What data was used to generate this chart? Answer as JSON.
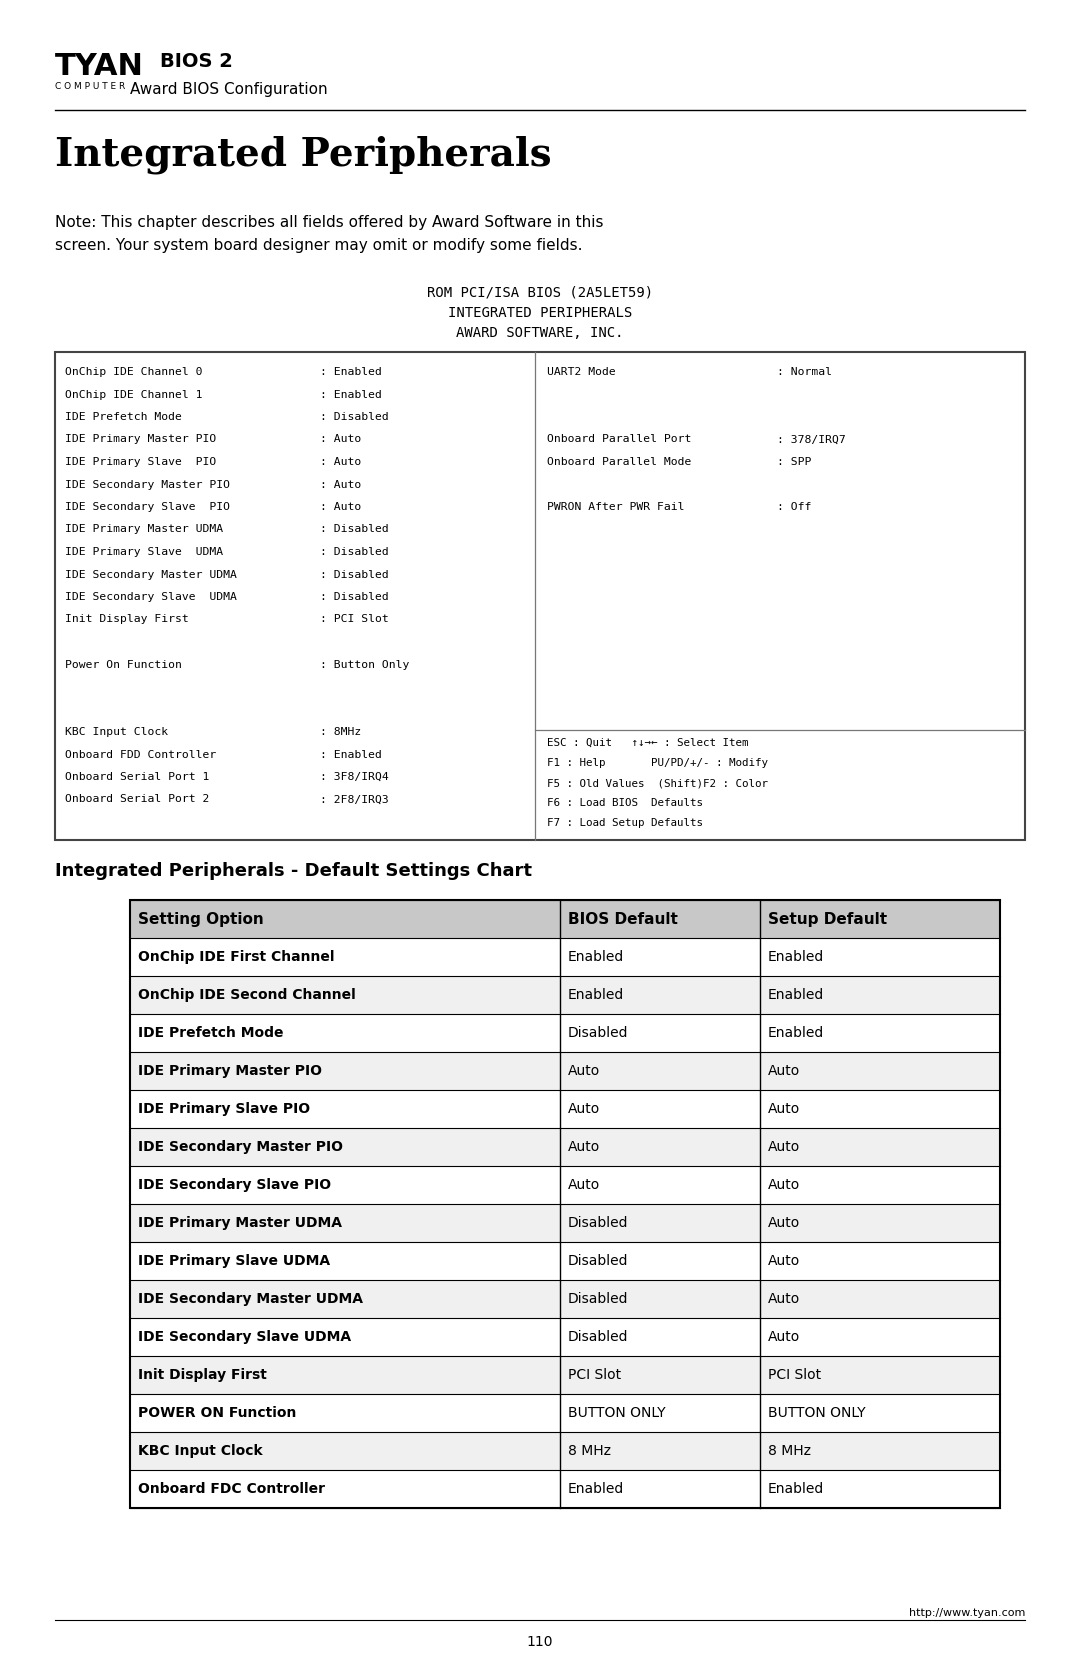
{
  "page_title": "Integrated Peripherals",
  "header_bios": "BIOS 2",
  "header_sub": "Award BIOS Configuration",
  "note_text1": "Note: This chapter describes all fields offered by Award Software in this",
  "note_text2": "screen. Your system board designer may omit or modify some fields.",
  "rom_lines": [
    "ROM PCI/ISA BIOS (2A5LET59)",
    "INTEGRATED PERIPHERALS",
    "AWARD SOFTWARE, INC."
  ],
  "bios_left": [
    [
      "OnChip IDE Channel 0",
      ": Enabled"
    ],
    [
      "OnChip IDE Channel 1",
      ": Enabled"
    ],
    [
      "IDE Prefetch Mode",
      ": Disabled"
    ],
    [
      "IDE Primary Master PIO",
      ": Auto"
    ],
    [
      "IDE Primary Slave  PIO",
      ": Auto"
    ],
    [
      "IDE Secondary Master PIO",
      ": Auto"
    ],
    [
      "IDE Secondary Slave  PIO",
      ": Auto"
    ],
    [
      "IDE Primary Master UDMA",
      ": Disabled"
    ],
    [
      "IDE Primary Slave  UDMA",
      ": Disabled"
    ],
    [
      "IDE Secondary Master UDMA",
      ": Disabled"
    ],
    [
      "IDE Secondary Slave  UDMA",
      ": Disabled"
    ],
    [
      "Init Display First",
      ": PCI Slot"
    ],
    [
      "",
      ""
    ],
    [
      "Power On Function",
      ": Button Only"
    ],
    [
      "",
      ""
    ],
    [
      "",
      ""
    ],
    [
      "KBC Input Clock",
      ": 8MHz"
    ],
    [
      "Onboard FDD Controller",
      ": Enabled"
    ],
    [
      "Onboard Serial Port 1",
      ": 3F8/IRQ4"
    ],
    [
      "Onboard Serial Port 2",
      ": 2F8/IRQ3"
    ]
  ],
  "bios_right_top": [
    [
      "UART2 Mode",
      ": Normal"
    ],
    [
      "",
      ""
    ],
    [
      "",
      ""
    ],
    [
      "Onboard Parallel Port",
      ": 378/IRQ7"
    ],
    [
      "Onboard Parallel Mode",
      ": SPP"
    ],
    [
      "",
      ""
    ],
    [
      "PWRON After PWR Fail",
      ": Off"
    ],
    [
      "",
      ""
    ],
    [
      "",
      ""
    ],
    [
      "",
      ""
    ],
    [
      "",
      ""
    ],
    [
      "",
      ""
    ],
    [
      "",
      ""
    ],
    [
      "",
      ""
    ]
  ],
  "bios_right_bottom": [
    "ESC : Quit   ↑↓→← : Select Item",
    "F1 : Help       PU/PD/+/- : Modify",
    "F5 : Old Values  (Shift)F2 : Color",
    "F6 : Load BIOS  Defaults",
    "F7 : Load Setup Defaults"
  ],
  "table_title": "Integrated Peripherals - Default Settings Chart",
  "table_headers": [
    "Setting Option",
    "BIOS Default",
    "Setup Default"
  ],
  "table_rows": [
    [
      "OnChip IDE First Channel",
      "Enabled",
      "Enabled"
    ],
    [
      "OnChip IDE Second Channel",
      "Enabled",
      "Enabled"
    ],
    [
      "IDE Prefetch Mode",
      "Disabled",
      "Enabled"
    ],
    [
      "IDE Primary Master PIO",
      "Auto",
      "Auto"
    ],
    [
      "IDE Primary Slave PIO",
      "Auto",
      "Auto"
    ],
    [
      "IDE Secondary Master PIO",
      "Auto",
      "Auto"
    ],
    [
      "IDE Secondary Slave PIO",
      "Auto",
      "Auto"
    ],
    [
      "IDE Primary Master UDMA",
      "Disabled",
      "Auto"
    ],
    [
      "IDE Primary Slave UDMA",
      "Disabled",
      "Auto"
    ],
    [
      "IDE Secondary Master UDMA",
      "Disabled",
      "Auto"
    ],
    [
      "IDE Secondary Slave UDMA",
      "Disabled",
      "Auto"
    ],
    [
      "Init Display First",
      "PCI Slot",
      "PCI Slot"
    ],
    [
      "POWER ON Function",
      "BUTTON ONLY",
      "BUTTON ONLY"
    ],
    [
      "KBC Input Clock",
      "8 MHz",
      "8 MHz"
    ],
    [
      "Onboard FDC Controller",
      "Enabled",
      "Enabled"
    ]
  ],
  "footer_url": "http://www.tyan.com",
  "page_num": "110",
  "bg": "#ffffff"
}
